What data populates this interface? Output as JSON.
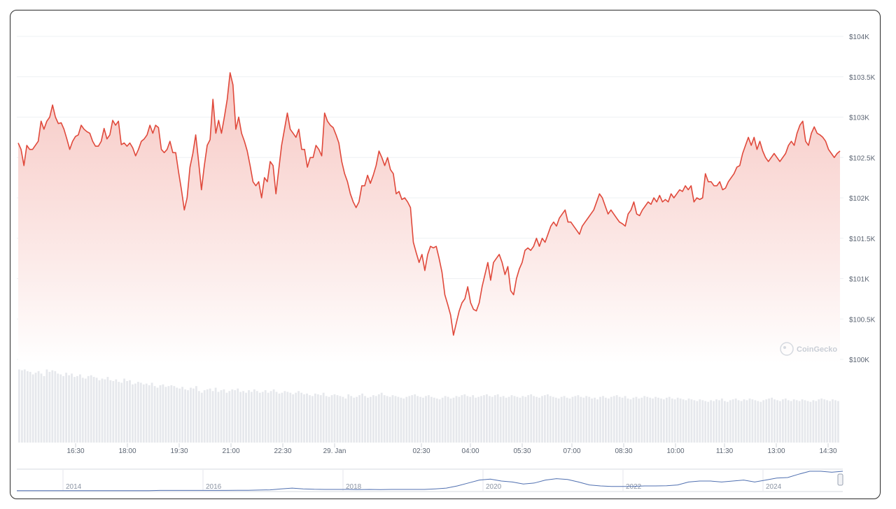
{
  "chart_data": {
    "type": "area",
    "watermark": "CoinGecko",
    "y_axis": {
      "ticks": [
        100000,
        100500,
        101000,
        101500,
        102000,
        102500,
        103000,
        103500,
        104000
      ],
      "tick_labels": [
        "$100K",
        "$100.5K",
        "$101K",
        "$101.5K",
        "$102K",
        "$102.5K",
        "$103K",
        "$103.5K",
        "$104K"
      ],
      "ylim": [
        100000,
        104000
      ],
      "position": "right"
    },
    "x_axis": {
      "tick_labels": [
        "16:30",
        "18:00",
        "19:30",
        "21:00",
        "22:30",
        "29. Jan",
        "02:30",
        "04:00",
        "05:30",
        "07:00",
        "08:30",
        "10:00",
        "11:30",
        "13:00",
        "14:30"
      ]
    },
    "grid": true,
    "colors": {
      "line": "#e0493b",
      "fill_top": "#f7c9c4",
      "fill_bottom": "#ffffff",
      "volume": "#e8e9ed",
      "navigator_line": "#4f6fb0"
    },
    "series": [
      {
        "values": [
          102680,
          102600,
          102400,
          102650,
          102600,
          102600,
          102650,
          102700,
          102950,
          102850,
          102950,
          103000,
          103150,
          103000,
          102920,
          102930,
          102850,
          102730,
          102600,
          102700,
          102760,
          102780,
          102900,
          102850,
          102820,
          102800,
          102700,
          102640,
          102640,
          102700,
          102860,
          102730,
          102780,
          102960,
          102900,
          102950,
          102660,
          102680,
          102640,
          102680,
          102620,
          102520,
          102600,
          102700,
          102730,
          102780,
          102900,
          102800,
          102900,
          102870,
          102600,
          102560,
          102600,
          102700,
          102560,
          102560,
          102320,
          102100,
          101850,
          102000,
          102380,
          102550,
          102780,
          102450,
          102100,
          102400,
          102650,
          102720,
          103220,
          102800,
          102960,
          102800,
          103000,
          103220,
          103550,
          103400,
          102850,
          103000,
          102800,
          102700,
          102580,
          102400,
          102200,
          102150,
          102200,
          102000,
          102250,
          102200,
          102450,
          102400,
          102050,
          102350,
          102650,
          102850,
          103050,
          102850,
          102800,
          102750,
          102850,
          102600,
          102600,
          102380,
          102500,
          102500,
          102650,
          102600,
          102520,
          103050,
          102950,
          102900,
          102870,
          102780,
          102680,
          102450,
          102300,
          102200,
          102050,
          101950,
          101880,
          101950,
          102150,
          102150,
          102280,
          102180,
          102280,
          102400,
          102580,
          102500,
          102400,
          102500,
          102350,
          102300,
          102050,
          102080,
          101980,
          102000,
          101950,
          101880,
          101450,
          101320,
          101200,
          101300,
          101100,
          101300,
          101400,
          101380,
          101400,
          101250,
          101080,
          100800,
          100680,
          100550,
          100300,
          100450,
          100600,
          100700,
          100750,
          100900,
          100700,
          100620,
          100600,
          100700,
          100900,
          101050,
          101200,
          100980,
          101200,
          101250,
          101300,
          101200,
          101050,
          101150,
          100850,
          100800,
          101000,
          101120,
          101200,
          101350,
          101380,
          101350,
          101400,
          101500,
          101400,
          101500,
          101450,
          101550,
          101650,
          101700,
          101650,
          101750,
          101800,
          101850,
          101700,
          101700,
          101650,
          101600,
          101550,
          101650,
          101700,
          101750,
          101800,
          101850,
          101950,
          102050,
          102000,
          101900,
          101800,
          101850,
          101800,
          101750,
          101700,
          101680,
          101650,
          101800,
          101850,
          101950,
          101800,
          101780,
          101850,
          101900,
          101950,
          101920,
          102000,
          101950,
          102030,
          101950,
          101980,
          101950,
          102050,
          102000,
          102050,
          102100,
          102080,
          102150,
          102100,
          102150,
          101950,
          102000,
          101980,
          102000,
          102300,
          102200,
          102200,
          102150,
          102150,
          102200,
          102100,
          102120,
          102200,
          102250,
          102300,
          102380,
          102400,
          102550,
          102650,
          102750,
          102650,
          102750,
          102600,
          102700,
          102580,
          102500,
          102450,
          102500,
          102550,
          102500,
          102450,
          102500,
          102550,
          102650,
          102700,
          102650,
          102800,
          102900,
          102950,
          102700,
          102650,
          102800,
          102880,
          102800,
          102780,
          102750,
          102700,
          102600,
          102550,
          102500,
          102550,
          102580
        ]
      }
    ],
    "volume": [
      88,
      87,
      88,
      86,
      85,
      82,
      84,
      86,
      83,
      80,
      88,
      85,
      87,
      86,
      83,
      82,
      80,
      84,
      81,
      83,
      79,
      80,
      82,
      78,
      77,
      80,
      81,
      79,
      78,
      75,
      77,
      76,
      79,
      75,
      74,
      76,
      73,
      72,
      77,
      74,
      75,
      70,
      71,
      73,
      72,
      70,
      71,
      69,
      72,
      68,
      66,
      69,
      70,
      67,
      68,
      69,
      68,
      66,
      65,
      67,
      64,
      63,
      66,
      65,
      68,
      62,
      60,
      63,
      64,
      65,
      62,
      66,
      61,
      63,
      64,
      60,
      62,
      64,
      63,
      65,
      61,
      62,
      60,
      63,
      61,
      64,
      62,
      60,
      61,
      63,
      60,
      62,
      64,
      61,
      59,
      60,
      62,
      61,
      60,
      58,
      60,
      62,
      60,
      58,
      59,
      57,
      56,
      59,
      58,
      57,
      60,
      56,
      55,
      57,
      58,
      57,
      56,
      55,
      53,
      58,
      56,
      54,
      55,
      57,
      59,
      56,
      54,
      55,
      57,
      56,
      58,
      60,
      57,
      56,
      55,
      57,
      56,
      55,
      54,
      53,
      55,
      56,
      57,
      58,
      56,
      55,
      54,
      56,
      57,
      55,
      54,
      53,
      52,
      54,
      56,
      55,
      53,
      54,
      56,
      55,
      57,
      58,
      56,
      55,
      57,
      54,
      55,
      56,
      57,
      58,
      56,
      55,
      57,
      58,
      55,
      56,
      54,
      55,
      57,
      56,
      55,
      54,
      56,
      55,
      57,
      58,
      56,
      55,
      54,
      56,
      57,
      58,
      56,
      55,
      54,
      53,
      55,
      56,
      54,
      53,
      55,
      56,
      57,
      55,
      54,
      56,
      55,
      53,
      54,
      52,
      55,
      56,
      54,
      53,
      55,
      56,
      57,
      55,
      54,
      56,
      53,
      52,
      54,
      55,
      53,
      54,
      56,
      55,
      54,
      53,
      55,
      54,
      53,
      52,
      54,
      55,
      53,
      52,
      54,
      53,
      52,
      51,
      53,
      52,
      51,
      50,
      52,
      51,
      50,
      49,
      51,
      50,
      52,
      51,
      53,
      50,
      49,
      51,
      52,
      53,
      51,
      50,
      52,
      51,
      53,
      52,
      51,
      50,
      49,
      51,
      52,
      53,
      54,
      52,
      51,
      50,
      52,
      53,
      51,
      50,
      52,
      51,
      50,
      52,
      51,
      50,
      49,
      51,
      50,
      52,
      53,
      52,
      51,
      50,
      52,
      51,
      50
    ],
    "navigator": {
      "tick_labels": [
        "2014",
        "2016",
        "2018",
        "2020",
        "2022",
        "2024"
      ],
      "values": [
        0.01,
        0.01,
        0.01,
        0.01,
        0.01,
        0.01,
        0.01,
        0.01,
        0.01,
        0.01,
        0.01,
        0.01,
        0.01,
        0.02,
        0.02,
        0.02,
        0.02,
        0.02,
        0.02,
        0.02,
        0.03,
        0.03,
        0.04,
        0.05,
        0.1,
        0.14,
        0.1,
        0.08,
        0.07,
        0.07,
        0.07,
        0.06,
        0.07,
        0.06,
        0.07,
        0.07,
        0.07,
        0.07,
        0.1,
        0.14,
        0.25,
        0.4,
        0.55,
        0.6,
        0.5,
        0.45,
        0.35,
        0.4,
        0.55,
        0.62,
        0.58,
        0.45,
        0.3,
        0.25,
        0.22,
        0.22,
        0.23,
        0.25,
        0.25,
        0.26,
        0.3,
        0.45,
        0.5,
        0.5,
        0.45,
        0.5,
        0.55,
        0.45,
        0.55,
        0.65,
        0.68,
        0.85,
        1.0,
        1.0,
        0.95,
        1.0
      ]
    }
  }
}
